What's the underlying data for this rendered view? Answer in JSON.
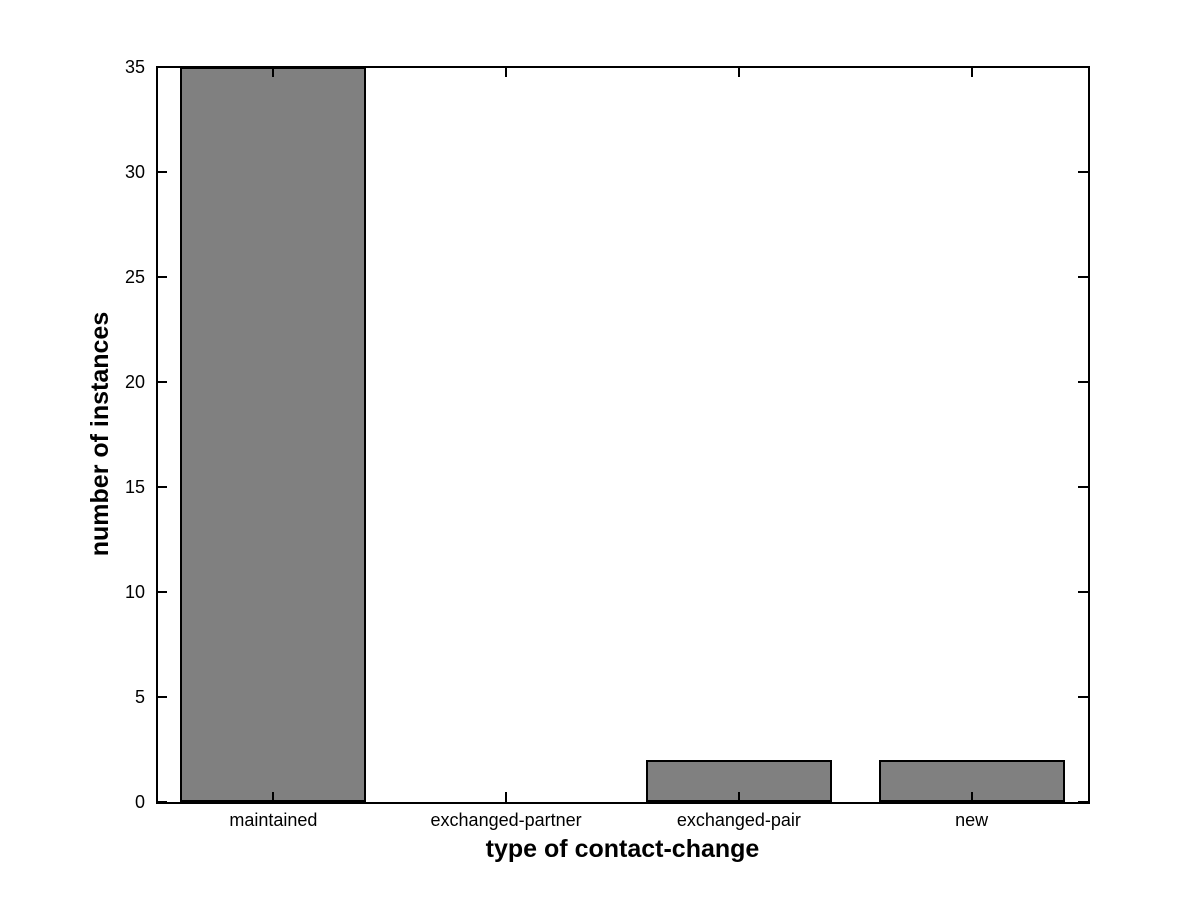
{
  "figure": {
    "background_color": "#ffffff",
    "text_color": "#000000"
  },
  "chart_data": {
    "type": "bar",
    "title": "",
    "xlabel": "type of contact-change",
    "ylabel": "number of instances",
    "categories": [
      "maintained",
      "exchanged-partner",
      "exchanged-pair",
      "new"
    ],
    "values": [
      35,
      0,
      2,
      2
    ],
    "ylim": [
      0,
      35
    ],
    "y_ticks": [
      0,
      5,
      10,
      15,
      20,
      25,
      30,
      35
    ],
    "bar_color": "#808080",
    "bar_edge_color": "#000000",
    "axis_color": "#000000",
    "grid": false,
    "legend": "none",
    "bar_width_fraction": 0.8
  }
}
